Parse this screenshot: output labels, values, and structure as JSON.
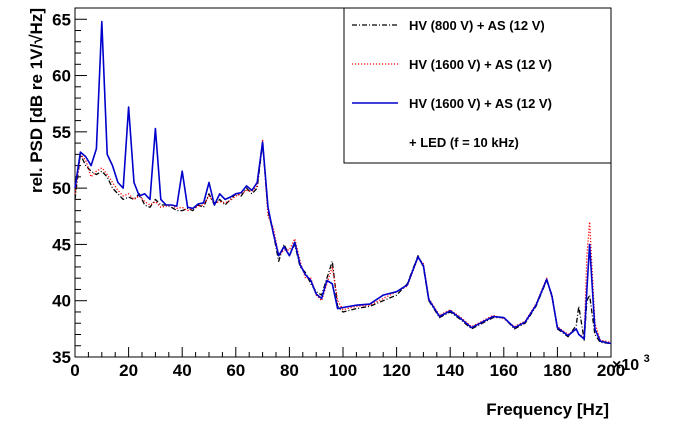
{
  "chart_data": {
    "type": "line",
    "xlabel": "Frequency [Hz]",
    "ylabel": "rel. PSD [dB re 1V/√Hz]",
    "x_multiplier_label": "×10",
    "x_multiplier_exp": "3",
    "xlim": [
      0,
      200
    ],
    "ylim": [
      35,
      66
    ],
    "xticks": [
      0,
      20,
      40,
      60,
      80,
      100,
      120,
      140,
      160,
      180,
      200
    ],
    "yticks": [
      35,
      40,
      45,
      50,
      55,
      60,
      65
    ],
    "legend_position": "top-right",
    "grid": false,
    "series": [
      {
        "name": "HV (800 V) + AS (12 V)",
        "color": "#000000",
        "dash": "dashdot",
        "x": [
          0,
          2,
          4,
          6,
          8,
          10,
          12,
          14,
          16,
          18,
          20,
          22,
          24,
          26,
          28,
          30,
          32,
          34,
          36,
          38,
          40,
          42,
          44,
          46,
          48,
          50,
          52,
          54,
          56,
          58,
          60,
          62,
          64,
          66,
          68,
          70,
          72,
          74,
          76,
          78,
          80,
          82,
          84,
          86,
          88,
          90,
          92,
          94,
          96,
          98,
          100,
          105,
          110,
          115,
          120,
          124,
          128,
          130,
          132,
          136,
          140,
          144,
          148,
          152,
          156,
          160,
          164,
          168,
          172,
          176,
          178,
          180,
          184,
          187,
          188,
          190,
          191,
          192,
          194,
          196,
          200
        ],
        "y": [
          49.0,
          53.0,
          52.0,
          51.5,
          51.2,
          51.5,
          51.0,
          50.0,
          49.5,
          49.0,
          49.2,
          49.0,
          49.5,
          48.5,
          48.3,
          49.0,
          48.5,
          48.5,
          48.3,
          48.0,
          48.0,
          48.2,
          48.0,
          48.5,
          48.3,
          49.5,
          48.5,
          49.0,
          48.5,
          49.0,
          49.5,
          49.3,
          50.0,
          49.5,
          50.0,
          54.0,
          48.0,
          46.0,
          43.5,
          45.0,
          44.0,
          45.0,
          43.0,
          42.5,
          41.5,
          40.8,
          40.5,
          42.0,
          43.5,
          39.5,
          39.0,
          39.3,
          39.5,
          40.0,
          40.5,
          41.5,
          44.0,
          43.0,
          40.0,
          38.5,
          39.0,
          38.3,
          37.5,
          38.0,
          38.5,
          38.5,
          37.5,
          38.0,
          39.5,
          41.8,
          40.5,
          37.5,
          36.8,
          37.8,
          39.5,
          36.5,
          40.0,
          40.5,
          37.0,
          36.3,
          36.2
        ]
      },
      {
        "name": "HV (1600 V) + AS (12 V)",
        "color": "#ff0000",
        "dash": "dotted",
        "x": [
          0,
          2,
          4,
          6,
          8,
          10,
          12,
          14,
          16,
          18,
          20,
          22,
          24,
          26,
          28,
          30,
          32,
          34,
          36,
          38,
          40,
          42,
          44,
          46,
          48,
          50,
          52,
          54,
          56,
          58,
          60,
          62,
          64,
          66,
          68,
          70,
          72,
          74,
          76,
          78,
          80,
          82,
          84,
          86,
          88,
          90,
          92,
          94,
          96,
          98,
          100,
          105,
          110,
          115,
          120,
          124,
          128,
          130,
          132,
          136,
          140,
          144,
          148,
          152,
          156,
          160,
          164,
          168,
          172,
          176,
          178,
          180,
          184,
          187,
          188,
          190,
          191,
          192,
          194,
          196,
          200
        ],
        "y": [
          49.5,
          53.0,
          52.5,
          51.0,
          51.5,
          51.8,
          51.2,
          50.5,
          49.8,
          49.3,
          49.5,
          49.0,
          49.3,
          48.8,
          48.5,
          48.8,
          48.3,
          48.4,
          48.5,
          48.2,
          48.3,
          48.0,
          48.2,
          48.4,
          48.5,
          49.3,
          48.7,
          48.8,
          48.7,
          48.9,
          49.3,
          49.5,
          49.8,
          49.7,
          50.2,
          54.3,
          47.5,
          46.5,
          44.0,
          44.5,
          44.5,
          45.5,
          43.5,
          42.0,
          42.0,
          40.5,
          40.0,
          41.5,
          43.0,
          40.0,
          39.2,
          39.5,
          39.6,
          40.2,
          40.8,
          41.3,
          43.8,
          43.3,
          40.2,
          38.7,
          39.2,
          38.5,
          37.7,
          38.2,
          38.7,
          38.4,
          37.7,
          38.2,
          39.7,
          42.0,
          40.2,
          37.7,
          37.0,
          37.5,
          37.0,
          36.8,
          44.0,
          47.0,
          38.0,
          36.5,
          36.3
        ]
      },
      {
        "name": "HV (1600 V) + AS (12 V)",
        "name_line2": "+ LED (f = 10 kHz)",
        "color": "#0000cc",
        "dash": "solid",
        "x": [
          0,
          2,
          4,
          6,
          8,
          10,
          12,
          14,
          16,
          18,
          20,
          22,
          24,
          26,
          28,
          30,
          32,
          34,
          36,
          38,
          40,
          42,
          44,
          46,
          48,
          50,
          52,
          54,
          56,
          58,
          60,
          62,
          64,
          66,
          68,
          70,
          72,
          74,
          76,
          78,
          80,
          82,
          84,
          86,
          88,
          90,
          92,
          94,
          96,
          98,
          100,
          105,
          110,
          115,
          120,
          124,
          128,
          130,
          132,
          136,
          140,
          144,
          148,
          152,
          156,
          160,
          164,
          168,
          172,
          176,
          178,
          180,
          184,
          187,
          188,
          190,
          191,
          192,
          194,
          196,
          200
        ],
        "y": [
          50.0,
          53.2,
          52.8,
          52.0,
          53.5,
          64.8,
          53.0,
          52.0,
          50.5,
          50.0,
          57.2,
          50.5,
          49.3,
          49.5,
          49.0,
          55.3,
          49.0,
          48.5,
          48.5,
          48.4,
          51.5,
          48.3,
          48.2,
          48.6,
          48.7,
          50.5,
          48.5,
          49.5,
          49.0,
          49.2,
          49.5,
          49.6,
          50.2,
          49.8,
          50.5,
          54.1,
          48.3,
          46.0,
          44.0,
          44.8,
          44.0,
          45.2,
          43.2,
          42.3,
          41.8,
          40.6,
          40.2,
          41.8,
          41.5,
          39.3,
          39.4,
          39.6,
          39.7,
          40.5,
          40.8,
          41.4,
          43.9,
          43.1,
          40.1,
          38.6,
          39.1,
          38.4,
          37.6,
          38.1,
          38.6,
          38.5,
          37.6,
          38.1,
          39.6,
          41.9,
          40.4,
          37.6,
          36.9,
          37.5,
          37.0,
          36.6,
          41.0,
          45.0,
          37.5,
          36.4,
          36.2
        ]
      }
    ]
  }
}
